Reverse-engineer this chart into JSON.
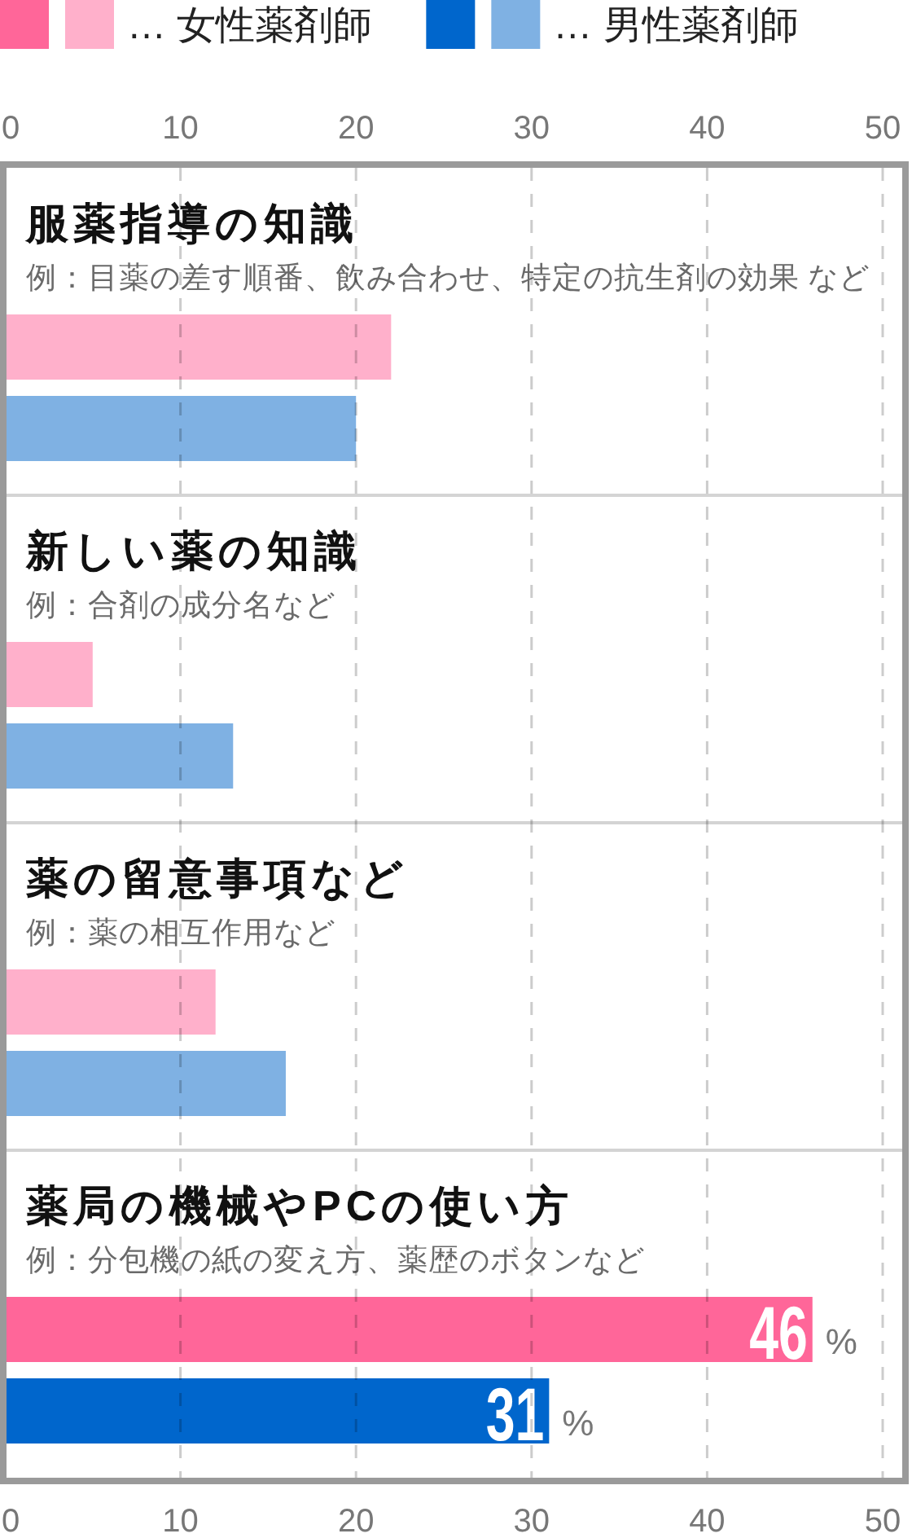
{
  "chart_data": {
    "type": "bar",
    "orientation": "horizontal",
    "categories": [
      "服薬指導の知識",
      "新しい薬の知識",
      "薬の留意事項など",
      "薬局の機械やPCの使い方"
    ],
    "annotations": [
      "例：目薬の差す順番、飲み合わせ、特定の抗生剤の効果 など",
      "例：合剤の成分名など",
      "例：薬の相互作用など",
      "例：分包機の紙の変え方、薬歴のボタンなど"
    ],
    "series": [
      {
        "name": "… 女性薬剤師",
        "color": "#ff6699",
        "colors": [
          "#ffb0cb",
          "#ffb0cb",
          "#ffb0cb",
          "#ff6699"
        ],
        "values": [
          22,
          5,
          12,
          46
        ],
        "value_labels": [
          null,
          null,
          null,
          "46%"
        ]
      },
      {
        "name": "… 男性薬剤師",
        "color": "#0066cc",
        "colors": [
          "#7fb1e3",
          "#7fb1e3",
          "#7fb1e3",
          "#0066cc"
        ],
        "values": [
          20,
          13,
          16,
          31
        ],
        "value_labels": [
          null,
          null,
          null,
          "31%"
        ]
      }
    ],
    "xlim": [
      0,
      50
    ],
    "xticks": [
      0,
      10,
      20,
      30,
      40,
      50
    ],
    "x2lim": [
      0,
      50
    ],
    "x2ticks": [
      0,
      10,
      20,
      30,
      40,
      50
    ],
    "grid": "x",
    "legend": "top left"
  }
}
